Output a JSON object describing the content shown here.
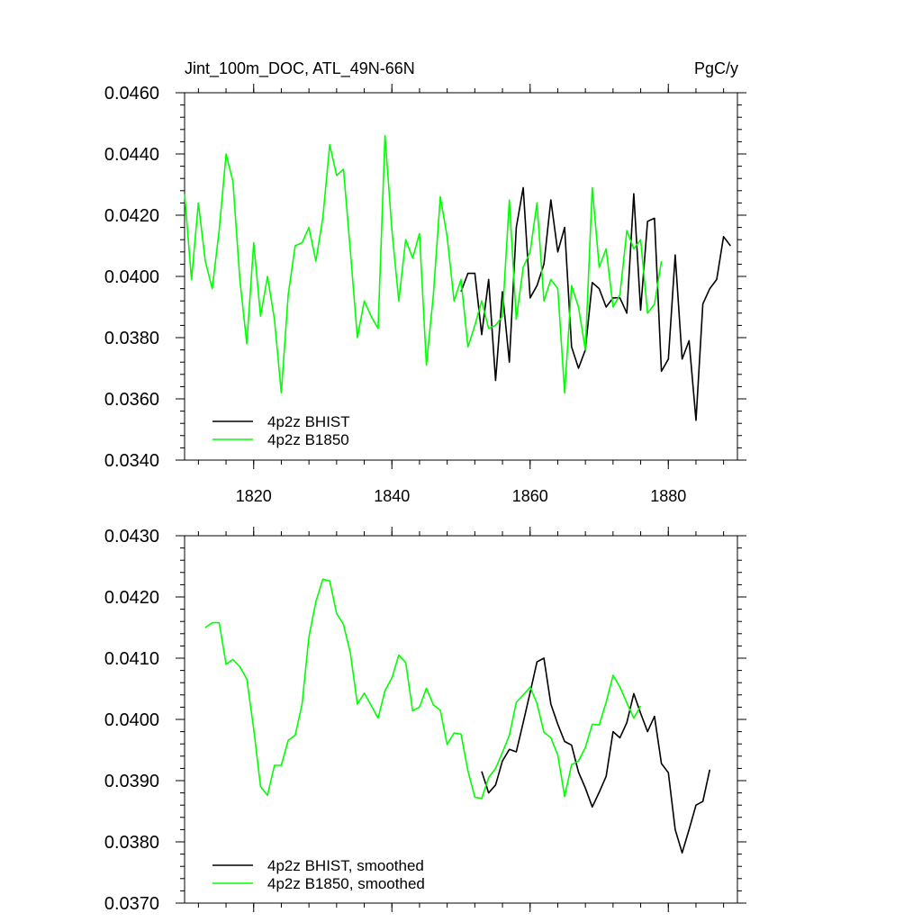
{
  "header": {
    "title_left": "Jint_100m_DOC, ATL_49N-66N",
    "title_right": "PgC/y"
  },
  "chart_data": [
    {
      "type": "line",
      "title": "Jint_100m_DOC, ATL_49N-66N",
      "units": "PgC/y",
      "xlim": [
        1810,
        1890
      ],
      "ylim": [
        0.034,
        0.046
      ],
      "xticks": [
        1820,
        1840,
        1860,
        1880
      ],
      "yticks": [
        "0.0340",
        "0.0360",
        "0.0380",
        "0.0400",
        "0.0420",
        "0.0440",
        "0.0460"
      ],
      "grid": false,
      "legend_position": "bottom-left",
      "series": [
        {
          "name": "4p2z BHIST",
          "color": "#000000",
          "x": [
            1850,
            1851,
            1852,
            1853,
            1854,
            1855,
            1856,
            1857,
            1858,
            1859,
            1860,
            1861,
            1862,
            1863,
            1864,
            1865,
            1866,
            1867,
            1868,
            1869,
            1870,
            1871,
            1872,
            1873,
            1874,
            1875,
            1876,
            1877,
            1878,
            1879,
            1880,
            1881,
            1882,
            1883,
            1884,
            1885,
            1886,
            1887,
            1888,
            1889
          ],
          "y": [
            0.0395,
            0.0401,
            0.0401,
            0.0381,
            0.0399,
            0.0366,
            0.0395,
            0.0372,
            0.0416,
            0.0429,
            0.0393,
            0.0397,
            0.0404,
            0.0425,
            0.0408,
            0.0416,
            0.0377,
            0.037,
            0.0376,
            0.0398,
            0.0396,
            0.039,
            0.0393,
            0.0393,
            0.0388,
            0.0427,
            0.0389,
            0.0418,
            0.0419,
            0.0369,
            0.0373,
            0.0407,
            0.0373,
            0.0379,
            0.0353,
            0.0391,
            0.0396,
            0.0399,
            0.0413,
            0.041
          ]
        },
        {
          "name": "4p2z B1850",
          "color": "#00ff00",
          "x": [
            1810,
            1811,
            1812,
            1813,
            1814,
            1815,
            1816,
            1817,
            1818,
            1819,
            1820,
            1821,
            1822,
            1823,
            1824,
            1825,
            1826,
            1827,
            1828,
            1829,
            1830,
            1831,
            1832,
            1833,
            1834,
            1835,
            1836,
            1837,
            1838,
            1839,
            1840,
            1841,
            1842,
            1843,
            1844,
            1845,
            1846,
            1847,
            1848,
            1849,
            1850,
            1851,
            1852,
            1853,
            1854,
            1855,
            1856,
            1857,
            1858,
            1859,
            1860,
            1861,
            1862,
            1863,
            1864,
            1865,
            1866,
            1867,
            1868,
            1869,
            1870,
            1871,
            1872,
            1873,
            1874,
            1875,
            1876,
            1877,
            1878,
            1879
          ],
          "y": [
            0.0427,
            0.0399,
            0.0424,
            0.0405,
            0.0396,
            0.0415,
            0.044,
            0.0431,
            0.0399,
            0.0378,
            0.0411,
            0.0387,
            0.04,
            0.0386,
            0.0362,
            0.0394,
            0.041,
            0.0411,
            0.0416,
            0.0405,
            0.0419,
            0.0443,
            0.0433,
            0.0435,
            0.0408,
            0.038,
            0.0392,
            0.0387,
            0.0383,
            0.0446,
            0.0415,
            0.0392,
            0.0412,
            0.0406,
            0.0414,
            0.0371,
            0.0394,
            0.0426,
            0.0413,
            0.0392,
            0.0399,
            0.0377,
            0.0384,
            0.0392,
            0.0383,
            0.0384,
            0.0387,
            0.0425,
            0.0386,
            0.0403,
            0.0408,
            0.0424,
            0.0392,
            0.0399,
            0.0396,
            0.0362,
            0.0397,
            0.039,
            0.0376,
            0.0429,
            0.0403,
            0.0409,
            0.039,
            0.0394,
            0.0415,
            0.0409,
            0.0412,
            0.0388,
            0.0391,
            0.0405
          ]
        }
      ]
    },
    {
      "type": "line",
      "xlim": [
        1810,
        1890
      ],
      "ylim": [
        0.037,
        0.043
      ],
      "xticks": [
        1820,
        1840,
        1860,
        1880
      ],
      "yticks": [
        "0.0370",
        "0.0380",
        "0.0390",
        "0.0400",
        "0.0410",
        "0.0420",
        "0.0430"
      ],
      "grid": false,
      "legend_position": "bottom-left",
      "series": [
        {
          "name": "4p2z BHIST, smoothed",
          "color": "#000000",
          "x": [
            1853,
            1854,
            1855,
            1856,
            1857,
            1858,
            1859,
            1860,
            1861,
            1862,
            1863,
            1864,
            1865,
            1866,
            1867,
            1868,
            1869,
            1870,
            1871,
            1872,
            1873,
            1874,
            1875,
            1876,
            1877,
            1878,
            1879,
            1880,
            1881,
            1882,
            1883,
            1884,
            1885,
            1886
          ],
          "y": [
            0.03915,
            0.0388,
            0.03893,
            0.03932,
            0.03951,
            0.03947,
            0.03995,
            0.04044,
            0.04094,
            0.041,
            0.04025,
            0.03992,
            0.03964,
            0.03958,
            0.03914,
            0.03888,
            0.03857,
            0.03881,
            0.03907,
            0.0398,
            0.0397,
            0.03995,
            0.04042,
            0.0401,
            0.0398,
            0.04005,
            0.03928,
            0.03913,
            0.0382,
            0.03782,
            0.0382,
            0.0386,
            0.03866,
            0.03918
          ]
        },
        {
          "name": "4p2z B1850, smoothed",
          "color": "#00ff00",
          "x": [
            1813,
            1814,
            1815,
            1816,
            1817,
            1818,
            1819,
            1820,
            1821,
            1822,
            1823,
            1824,
            1825,
            1826,
            1827,
            1828,
            1829,
            1830,
            1831,
            1832,
            1833,
            1834,
            1835,
            1836,
            1837,
            1838,
            1839,
            1840,
            1841,
            1842,
            1843,
            1844,
            1845,
            1846,
            1847,
            1848,
            1849,
            1850,
            1851,
            1852,
            1853,
            1854,
            1855,
            1856,
            1857,
            1858,
            1859,
            1860,
            1861,
            1862,
            1863,
            1864,
            1865,
            1866,
            1867,
            1868,
            1869,
            1870,
            1871,
            1872,
            1873,
            1874,
            1875,
            1876
          ],
          "y": [
            0.0415,
            0.04158,
            0.04158,
            0.0409,
            0.04098,
            0.04086,
            0.04066,
            0.03984,
            0.0389,
            0.03876,
            0.03925,
            0.03925,
            0.03966,
            0.03974,
            0.04025,
            0.04135,
            0.04192,
            0.04229,
            0.04226,
            0.04173,
            0.04155,
            0.04108,
            0.04025,
            0.04043,
            0.04023,
            0.04002,
            0.04047,
            0.04068,
            0.04105,
            0.04093,
            0.04014,
            0.0402,
            0.04051,
            0.04024,
            0.04015,
            0.03959,
            0.03978,
            0.03976,
            0.03916,
            0.03873,
            0.03871,
            0.03905,
            0.0392,
            0.03946,
            0.03974,
            0.04028,
            0.0404,
            0.04053,
            0.04026,
            0.03979,
            0.0397,
            0.03942,
            0.03874,
            0.03926,
            0.03932,
            0.03954,
            0.03992,
            0.03991,
            0.04028,
            0.04072,
            0.04053,
            0.04027,
            0.04002,
            0.04022
          ]
        }
      ]
    }
  ]
}
